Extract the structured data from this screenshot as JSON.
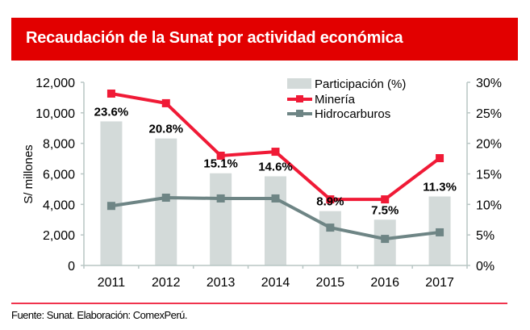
{
  "header": {
    "title": "Recaudación de la Sunat por actividad económica"
  },
  "footer": {
    "source": "Fuente: Sunat. Elaboración: ComexPerú."
  },
  "colors": {
    "title_bg": "#e20000",
    "mineria": "#f01a36",
    "hidrocarburos": "#6e8585",
    "participacion": "#d3dad9",
    "axis": "#b8c6c4",
    "footer_line": "#f0334d"
  },
  "chart_data": {
    "type": "bar",
    "title": "Recaudación de la Sunat por actividad económica",
    "categories": [
      "2011",
      "2012",
      "2013",
      "2014",
      "2015",
      "2016",
      "2017"
    ],
    "ylabel": "S/ millones",
    "ylim": [
      0,
      12000
    ],
    "yticks": [
      "0",
      "2,000",
      "4,000",
      "6,000",
      "8,000",
      "10,000",
      "12,000"
    ],
    "y2lim": [
      0,
      30
    ],
    "y2ticks": [
      "0%",
      "5%",
      "10%",
      "15%",
      "20%",
      "25%",
      "30%"
    ],
    "legend_position": "top-right",
    "series": [
      {
        "name": "Participación (%)",
        "kind": "bar",
        "axis": "right",
        "values": [
          23.6,
          20.8,
          15.1,
          14.6,
          8.9,
          7.5,
          11.3
        ],
        "labels": [
          "23.6%",
          "20.8%",
          "15.1%",
          "14.6%",
          "8.9%",
          "7.5%",
          "11.3%"
        ]
      },
      {
        "name": "Minería",
        "kind": "line",
        "axis": "left",
        "values": [
          11260,
          10630,
          7190,
          7450,
          4330,
          4330,
          7030
        ]
      },
      {
        "name": "Hidrocarburos",
        "kind": "line",
        "axis": "left",
        "values": [
          3900,
          4440,
          4390,
          4390,
          2480,
          1740,
          2170
        ]
      }
    ]
  }
}
